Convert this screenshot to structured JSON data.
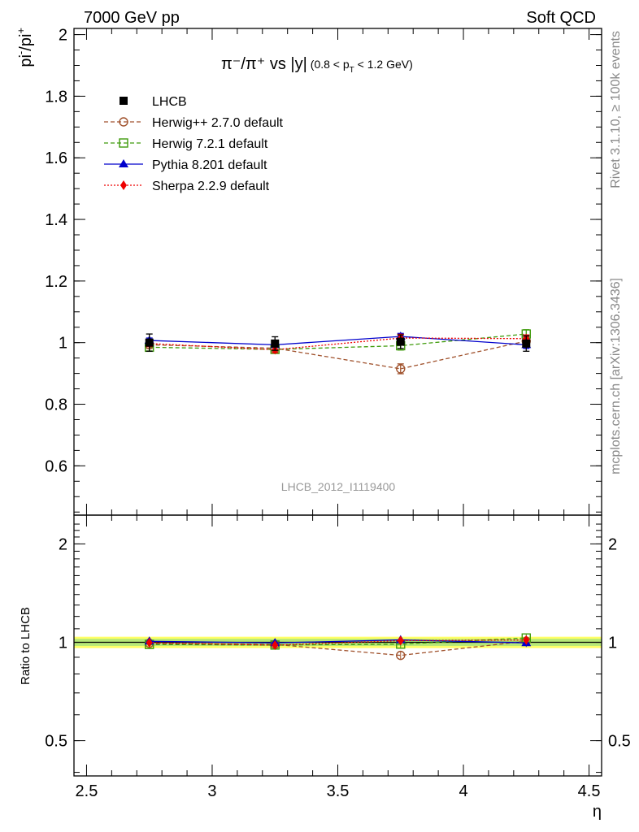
{
  "header": {
    "left": "7000 GeV pp",
    "right": "Soft QCD"
  },
  "side_labels": {
    "rivet": "Rivet 3.1.10, ≥ 100k events",
    "mcplots": "mcplots.cern.ch [arXiv:1306.3436]"
  },
  "watermark": "LHCB_2012_I1119400",
  "chart_data": [
    {
      "type": "line",
      "panel": "main",
      "title": "π⁻/π⁺ vs |y|",
      "title_range": "(0.8 < p",
      "title_range_sub": "T",
      "title_range_end": " < 1.2 GeV)",
      "ylabel": "pi",
      "ylabel_sup1": "-",
      "ylabel_mid": "/pi",
      "ylabel_sup2": "+",
      "ylim": [
        0.44,
        2.02
      ],
      "xlim": [
        2.45,
        4.55
      ],
      "yticks": [
        {
          "v": 0.6,
          "label": "0.6"
        },
        {
          "v": 0.8,
          "label": "0.8"
        },
        {
          "v": 1.0,
          "label": "1"
        },
        {
          "v": 1.2,
          "label": "1.2"
        },
        {
          "v": 1.4,
          "label": "1.4"
        },
        {
          "v": 1.6,
          "label": "1.6"
        },
        {
          "v": 1.8,
          "label": "1.8"
        },
        {
          "v": 2.0,
          "label": "2"
        }
      ],
      "legend_position": "top-left",
      "x": [
        2.75,
        3.25,
        3.75,
        4.25
      ],
      "series": [
        {
          "name": "LHCB",
          "color": "#000000",
          "marker": "square-filled",
          "line": "none",
          "values": [
            1.0,
            0.997,
            1.003,
            0.997
          ],
          "errors": [
            0.028,
            0.022,
            0.022,
            0.025
          ]
        },
        {
          "name": "Herwig++ 2.7.0 default",
          "color": "#a0522d",
          "marker": "circle-open",
          "line": "dashed",
          "values": [
            0.993,
            0.982,
            0.915,
            1.005
          ],
          "errors": [
            0.012,
            0.012,
            0.016,
            0.014
          ]
        },
        {
          "name": "Herwig 7.2.1 default",
          "color": "#3f9b0b",
          "marker": "square-open",
          "line": "dashed",
          "values": [
            0.985,
            0.978,
            0.99,
            1.028
          ],
          "errors": [
            0.012,
            0.012,
            0.014,
            0.014
          ]
        },
        {
          "name": "Pythia 8.201 default",
          "color": "#0000cc",
          "marker": "triangle-filled",
          "line": "solid",
          "values": [
            1.007,
            0.993,
            1.02,
            0.993
          ],
          "errors": [
            0.008,
            0.008,
            0.01,
            0.012
          ]
        },
        {
          "name": "Sherpa 2.2.9 default",
          "color": "#ee0000",
          "marker": "diamond-filled",
          "line": "dotted",
          "values": [
            0.997,
            0.977,
            1.015,
            1.013
          ],
          "errors": [
            0.01,
            0.01,
            0.012,
            0.012
          ]
        }
      ]
    },
    {
      "type": "line",
      "panel": "ratio",
      "ylabel": "Ratio to LHCB",
      "ylim": [
        0.39,
        2.45
      ],
      "scale": "log",
      "xlim": [
        2.45,
        4.55
      ],
      "xlabel": "η",
      "xticks": [
        {
          "v": 2.5,
          "label": "2.5"
        },
        {
          "v": 3.0,
          "label": "3"
        },
        {
          "v": 3.5,
          "label": "3.5"
        },
        {
          "v": 4.0,
          "label": "4"
        },
        {
          "v": 4.5,
          "label": "4.5"
        }
      ],
      "yticks": [
        {
          "v": 0.5,
          "label": "0.5"
        },
        {
          "v": 1.0,
          "label": "1"
        },
        {
          "v": 2.0,
          "label": "2"
        }
      ],
      "band": {
        "color": "#ffff66",
        "color_inner": "#b6e878",
        "half_width": 0.025
      },
      "x": [
        2.75,
        3.25,
        3.75,
        4.25
      ],
      "series": [
        {
          "name": "Herwig++ 2.7.0 default",
          "color": "#a0522d",
          "marker": "circle-open",
          "line": "dashed",
          "values": [
            0.993,
            0.985,
            0.912,
            1.008
          ]
        },
        {
          "name": "Herwig 7.2.1 default",
          "color": "#3f9b0b",
          "marker": "square-open",
          "line": "dashed",
          "values": [
            0.985,
            0.981,
            0.987,
            1.031
          ]
        },
        {
          "name": "Pythia 8.201 default",
          "color": "#0000cc",
          "marker": "triangle-filled",
          "line": "solid",
          "values": [
            1.007,
            0.996,
            1.017,
            0.996
          ]
        },
        {
          "name": "Sherpa 2.2.9 default",
          "color": "#ee0000",
          "marker": "diamond-filled",
          "line": "dotted",
          "values": [
            0.997,
            0.98,
            1.012,
            1.016
          ]
        }
      ]
    }
  ]
}
